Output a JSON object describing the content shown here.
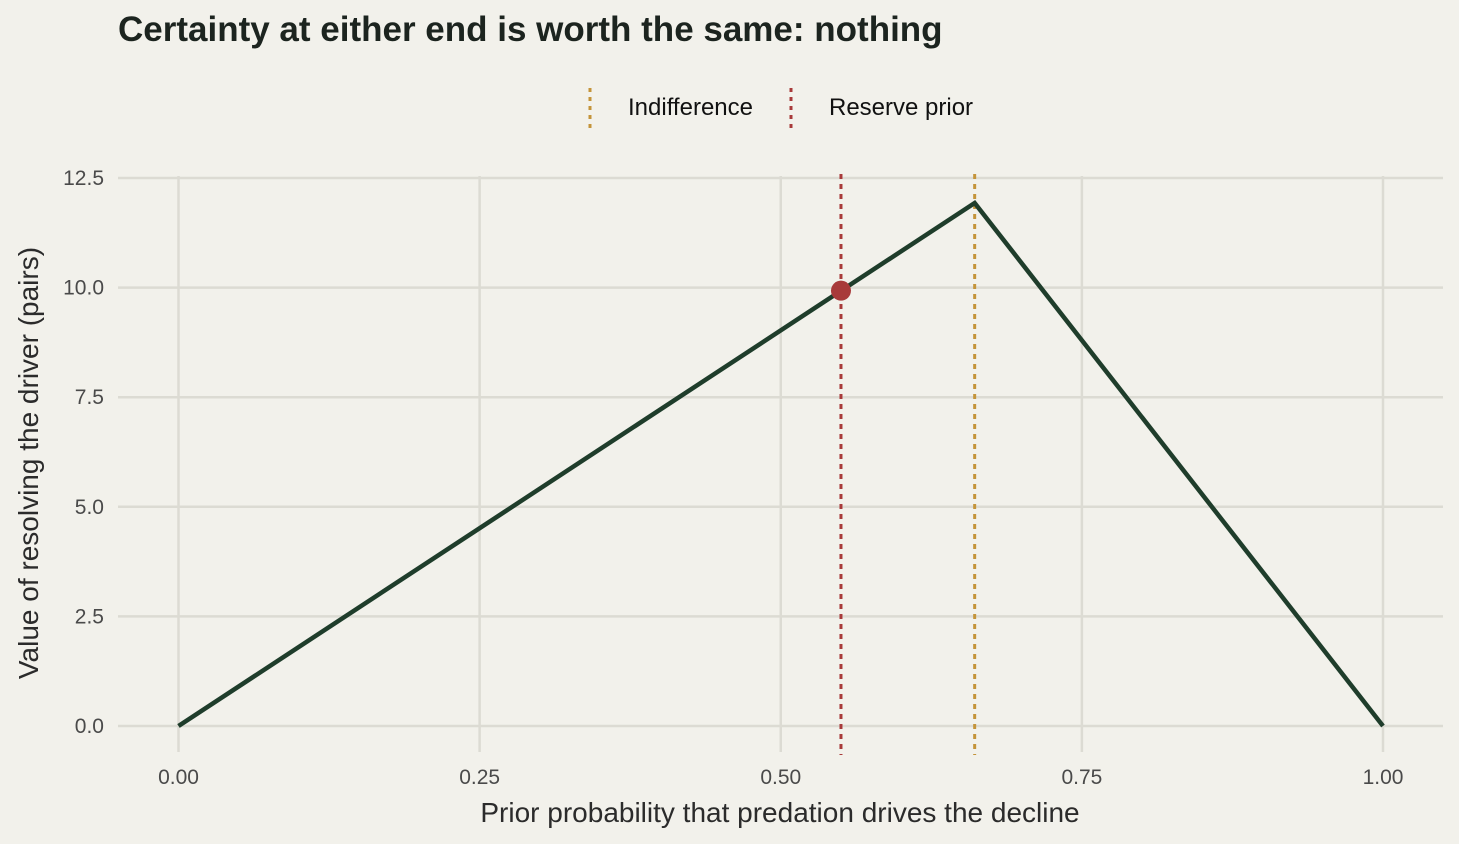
{
  "chart_data": {
    "type": "line",
    "title": "Certainty at either end is worth the same: nothing",
    "xlabel": "Prior probability that predation drives the decline",
    "ylabel": "Value of resolving the driver (pairs)",
    "xlim": [
      -0.05,
      1.05
    ],
    "ylim": [
      -0.6,
      12.5
    ],
    "x_ticks": [
      0,
      0.25,
      0.5,
      0.75,
      1
    ],
    "x_tick_labels": [
      "0.00",
      "0.25",
      "0.50",
      "0.75",
      "1.00"
    ],
    "y_ticks": [
      0,
      2.5,
      5,
      7.5,
      10,
      12.5
    ],
    "y_tick_labels": [
      "0.0",
      "2.5",
      "5.0",
      "7.5",
      "10.0",
      "12.5"
    ],
    "grid": true,
    "series": [
      {
        "color": "#1f3d2b",
        "x": [
          0,
          0.661,
          1
        ],
        "y": [
          0,
          11.93,
          0
        ]
      }
    ],
    "vlines": [
      {
        "name": "Indifference",
        "x": 0.661,
        "color": "#c4943a",
        "style": "dotted"
      },
      {
        "name": "Reserve prior",
        "x": 0.55,
        "color": "#a83a3a",
        "style": "dotted"
      }
    ],
    "point": {
      "x": 0.55,
      "y": 9.93,
      "color": "#a83a3a"
    },
    "legend": {
      "placement": "top",
      "items": [
        {
          "label": "Indifference",
          "color": "#c4943a"
        },
        {
          "label": "Reserve prior",
          "color": "#a83a3a"
        }
      ]
    }
  }
}
